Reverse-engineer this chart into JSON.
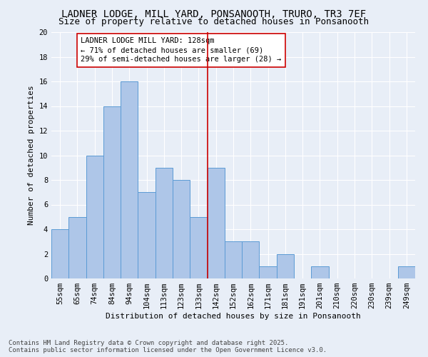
{
  "title": "LADNER LODGE, MILL YARD, PONSANOOTH, TRURO, TR3 7EF",
  "subtitle": "Size of property relative to detached houses in Ponsanooth",
  "xlabel": "Distribution of detached houses by size in Ponsanooth",
  "ylabel": "Number of detached properties",
  "categories": [
    "55sqm",
    "65sqm",
    "74sqm",
    "84sqm",
    "94sqm",
    "104sqm",
    "113sqm",
    "123sqm",
    "133sqm",
    "142sqm",
    "152sqm",
    "162sqm",
    "171sqm",
    "181sqm",
    "191sqm",
    "201sqm",
    "210sqm",
    "220sqm",
    "230sqm",
    "239sqm",
    "249sqm"
  ],
  "values": [
    4,
    5,
    10,
    14,
    16,
    7,
    9,
    8,
    5,
    9,
    3,
    3,
    1,
    2,
    0,
    1,
    0,
    0,
    0,
    0,
    1
  ],
  "bar_color": "#aec6e8",
  "bar_edge_color": "#5b9bd5",
  "vline_index": 8.5,
  "vline_color": "#cc0000",
  "annotation_text": "LADNER LODGE MILL YARD: 128sqm\n← 71% of detached houses are smaller (69)\n29% of semi-detached houses are larger (28) →",
  "annotation_box_color": "#ffffff",
  "annotation_box_edge_color": "#cc0000",
  "ylim": [
    0,
    20
  ],
  "yticks": [
    0,
    2,
    4,
    6,
    8,
    10,
    12,
    14,
    16,
    18,
    20
  ],
  "bg_color": "#e8eef7",
  "plot_bg_color": "#e8eef7",
  "footer_line1": "Contains HM Land Registry data © Crown copyright and database right 2025.",
  "footer_line2": "Contains public sector information licensed under the Open Government Licence v3.0.",
  "title_fontsize": 10,
  "subtitle_fontsize": 9,
  "axis_label_fontsize": 8,
  "tick_fontsize": 7.5,
  "annotation_fontsize": 7.5,
  "footer_fontsize": 6.5
}
